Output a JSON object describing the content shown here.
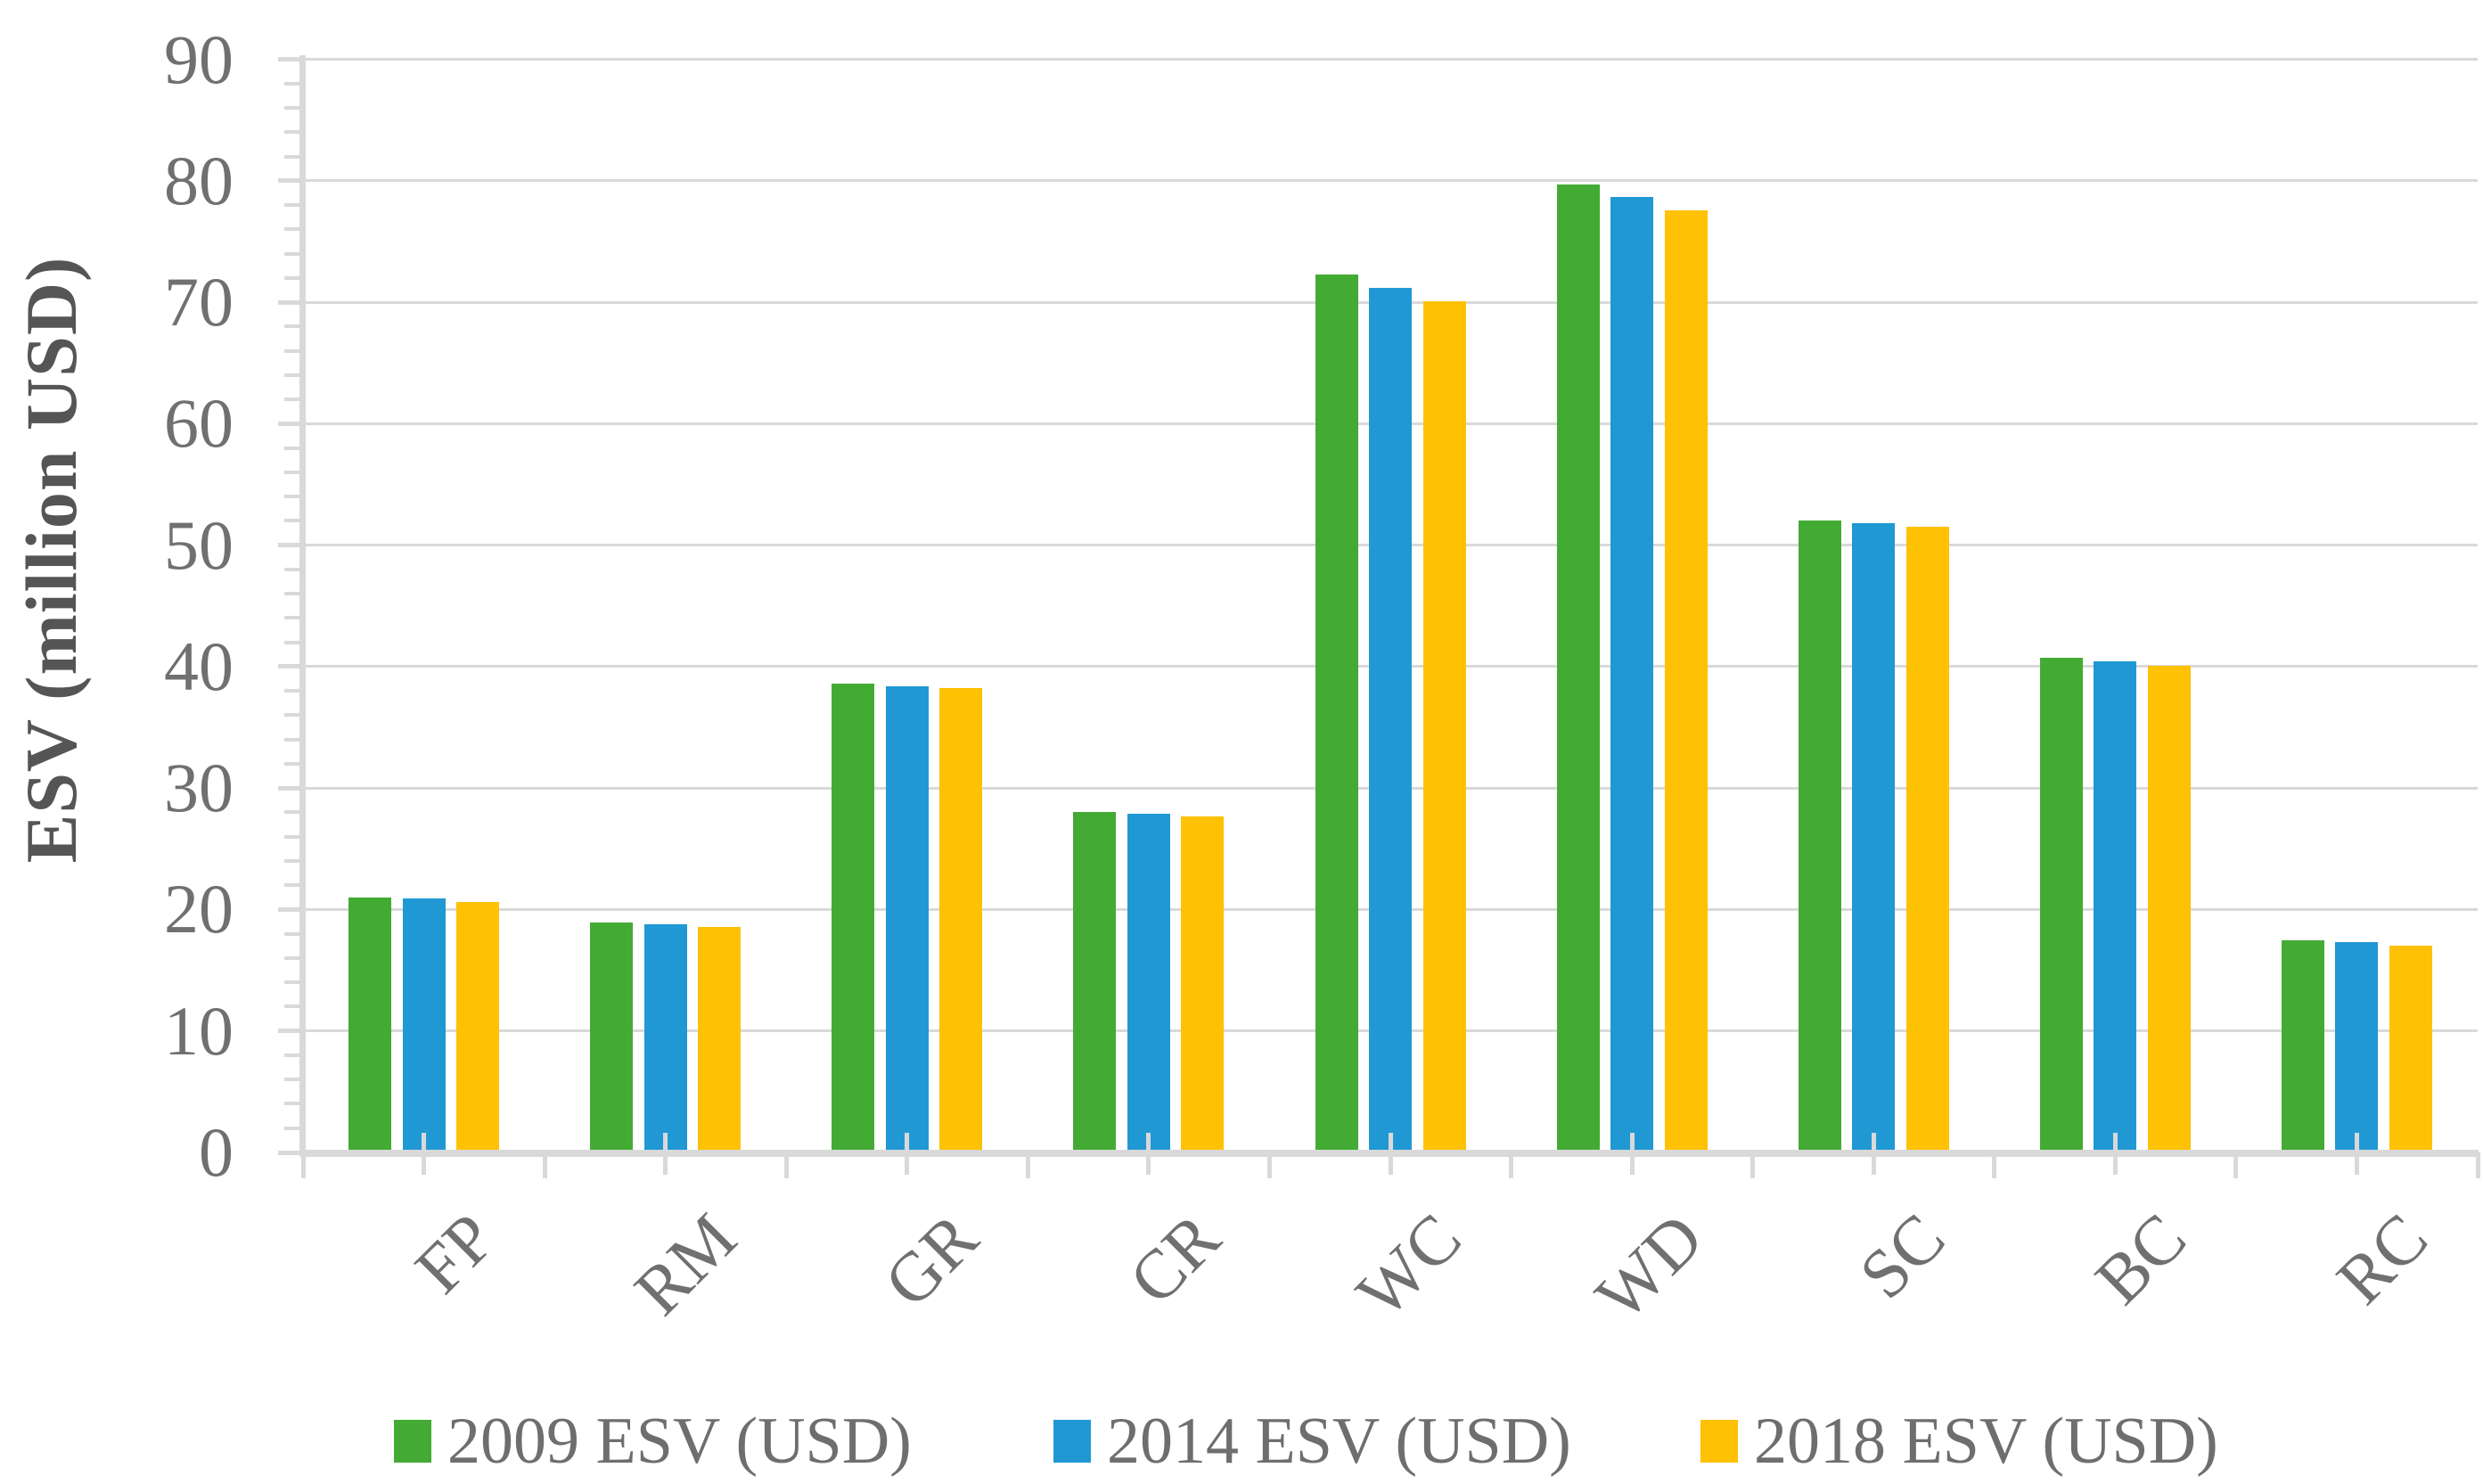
{
  "figure": {
    "background": "#ffffff",
    "y_axis_title": "ESV (million USD)"
  },
  "chart_data": {
    "type": "bar",
    "title": "",
    "xlabel": "",
    "ylabel": "ESV (million USD)",
    "ylim": [
      0,
      90
    ],
    "ytick_step": 10,
    "y_minor_tick_step": 2,
    "grid": true,
    "legend_position": "bottom",
    "categories": [
      "FP",
      "RM",
      "GR",
      "CR",
      "WC",
      "WD",
      "SC",
      "BC",
      "RC"
    ],
    "series": [
      {
        "name": "2009 ESV (USD)",
        "color": "#43AB34",
        "values": [
          21.0,
          18.9,
          38.6,
          28.0,
          72.3,
          79.7,
          52.0,
          40.7,
          17.5
        ]
      },
      {
        "name": "2014 ESV (USD)",
        "color": "#2098D4",
        "values": [
          20.9,
          18.8,
          38.4,
          27.9,
          71.2,
          78.7,
          51.8,
          40.4,
          17.3
        ]
      },
      {
        "name": "2018 ESV (USD)",
        "color": "#FEC103",
        "values": [
          20.6,
          18.6,
          38.2,
          27.7,
          70.1,
          77.6,
          51.5,
          40.1,
          17.0
        ]
      }
    ],
    "colors": {
      "axis_line": "#D9D9D9",
      "gridline": "#D9D9D9",
      "tick_mark": "#D9D9D9",
      "tick_label": "#707070",
      "axis_title": "#555555",
      "legend_text": "#6E6E6E"
    }
  }
}
